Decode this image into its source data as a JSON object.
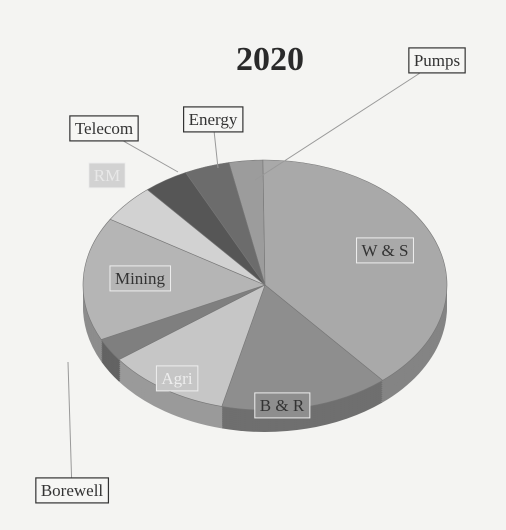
{
  "chart_data": {
    "type": "pie",
    "title": "2020",
    "categories": [
      "Pumps",
      "W & S",
      "B & R",
      "Agri",
      "Borewell",
      "Mining",
      "RM",
      "Telecom",
      "Energy"
    ],
    "values": [
      3,
      39,
      15,
      11,
      3,
      16,
      5,
      4,
      4
    ],
    "colors": [
      "#9c9c9c",
      "#a9a9a9",
      "#8e8e8e",
      "#c6c6c6",
      "#7f7f7f",
      "#b5b5b5",
      "#d2d2d2",
      "#565656",
      "#6c6c6c"
    ]
  }
}
